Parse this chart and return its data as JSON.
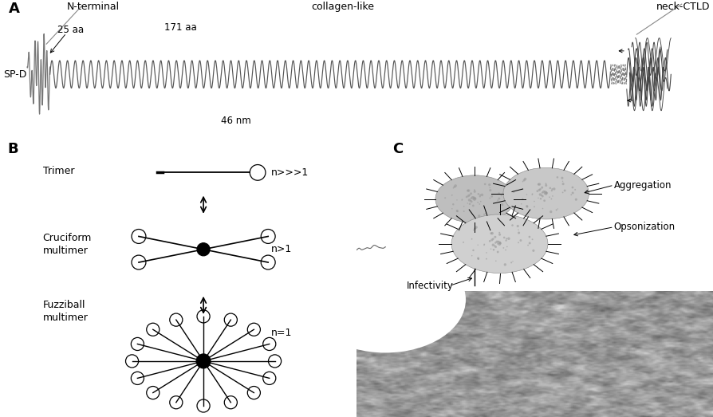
{
  "bg_color": "#ffffff",
  "text_color": "#000000",
  "panel_A": {
    "label": "A",
    "n_terminal_label": "N-terminal",
    "collagen_label": "collagen-like",
    "neck_ctld_label": "neck-CTLD",
    "spd_label": "SP-D",
    "aa25_label": "25 aa",
    "aa171_label": "171 aa",
    "nm46_label": "46 nm"
  },
  "panel_B": {
    "label": "B",
    "trimer_label": "Trimer",
    "cruciform_label": "Cruciform\nmultimer",
    "fuzziball_label": "Fuzziball\nmultimer",
    "n_label_trimer": "n>>>1",
    "n_label_cruciform": "n>1",
    "n_label_fuzziball": "n=1"
  },
  "panel_C": {
    "label": "C",
    "aggregation_label": "Aggregation",
    "opsonization_label": "Opsonization",
    "infectivity_label": "Infectivity"
  }
}
